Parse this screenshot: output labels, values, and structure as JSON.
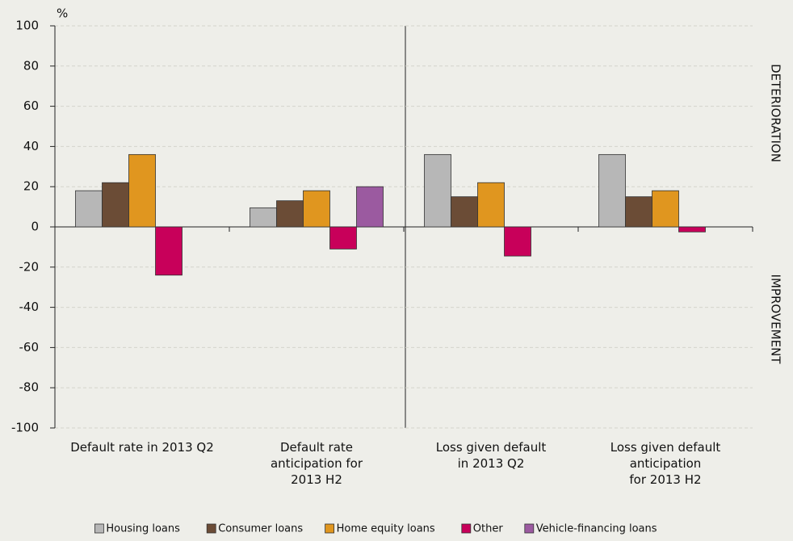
{
  "chart_data": {
    "type": "bar",
    "unit_label": "%",
    "categories": [
      "Default rate in 2013 Q2",
      "Default rate\nanticipation for\n2013 H2",
      "Loss given default\nin 2013 Q2",
      "Loss given default\nanticipation\nfor 2013 H2"
    ],
    "series": [
      {
        "name": "Housing loans",
        "color": "#b7b7b7",
        "values": [
          18,
          9.5,
          36,
          36
        ]
      },
      {
        "name": "Consumer loans",
        "color": "#6b4c36",
        "values": [
          22,
          13,
          15,
          15
        ]
      },
      {
        "name": "Home equity loans",
        "color": "#e0961f",
        "values": [
          36,
          18,
          22,
          18
        ]
      },
      {
        "name": "Other",
        "color": "#c8005a",
        "values": [
          -24,
          -11,
          -14.5,
          -2.5
        ]
      },
      {
        "name": "Vehicle-financing loans",
        "color": "#9b5aa0",
        "values": [
          null,
          20,
          null,
          null
        ]
      }
    ],
    "ylim": [
      -100,
      100
    ],
    "yticks": [
      -100,
      -80,
      -60,
      -40,
      -20,
      0,
      20,
      40,
      60,
      80,
      100
    ],
    "grid": true,
    "annotations": [
      "DETERIORATION",
      "IMPROVEMENT"
    ],
    "legend_position": "bottom"
  }
}
